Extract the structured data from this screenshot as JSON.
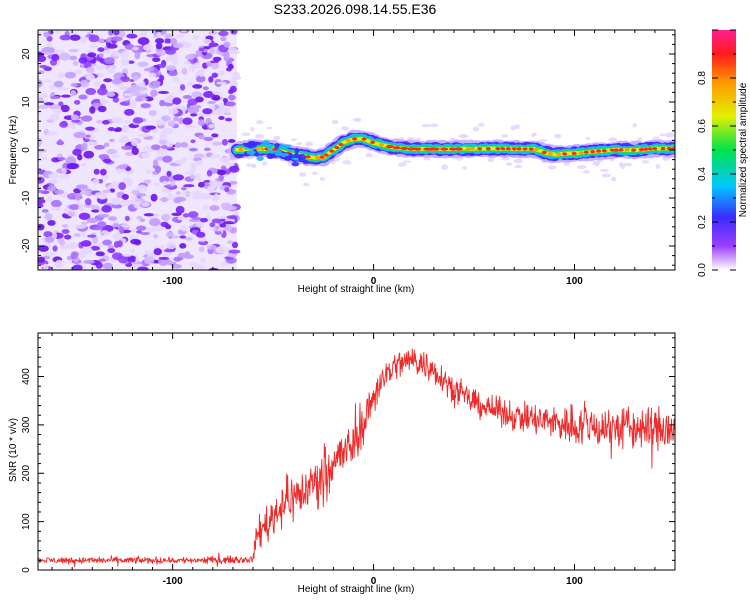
{
  "title": "S233.2026.098.14.55.E36",
  "colors": {
    "series": "#ee2a2a",
    "frame": "#000000",
    "background": "#ffffff"
  },
  "chart_data": [
    {
      "type": "heatmap",
      "xlabel": "Height of straight line (km)",
      "ylabel": "Frequency (Hz)",
      "xlim": [
        -167,
        150
      ],
      "ylim": [
        -25,
        25
      ],
      "xticks": [
        -100,
        0,
        100
      ],
      "xtick_labels": [
        "-100",
        "0",
        "100"
      ],
      "yticks": [
        -20,
        -10,
        0,
        10,
        20
      ],
      "ytick_labels": [
        "-20",
        "-10",
        "0",
        "10",
        "20"
      ],
      "noise_region_x": [
        -167,
        -68
      ],
      "ridge": {
        "x": [
          -68,
          -60,
          -50,
          -40,
          -30,
          -25,
          -20,
          -15,
          -10,
          -5,
          0,
          10,
          20,
          40,
          60,
          80,
          85,
          90,
          100,
          110,
          120,
          130,
          140,
          150
        ],
        "y": [
          0,
          0.3,
          0.2,
          -1.0,
          -1.6,
          -1.5,
          0,
          1.5,
          2.3,
          2.3,
          1.5,
          0.5,
          0.2,
          0.2,
          0.3,
          0.2,
          -0.5,
          -0.9,
          -0.7,
          -0.3,
          0,
          0,
          0.3,
          0.3
        ]
      },
      "colorbar": {
        "label": "Normalized spectral amplitude",
        "range": [
          0,
          1
        ],
        "ticks": [
          0.0,
          0.2,
          0.4,
          0.6,
          0.8
        ],
        "tick_labels": [
          "0.0",
          "0.2",
          "0.4",
          "0.6",
          "0.8"
        ]
      }
    },
    {
      "type": "line",
      "xlabel": "Height of straight line (km)",
      "ylabel": "SNR (10 * v/v)",
      "xlim": [
        -167,
        150
      ],
      "ylim": [
        0,
        490
      ],
      "xticks": [
        -100,
        0,
        100
      ],
      "xtick_labels": [
        "-100",
        "0",
        "100"
      ],
      "yticks": [
        0,
        100,
        200,
        300,
        400
      ],
      "ytick_labels": [
        "0",
        "100",
        "200",
        "300",
        "400"
      ],
      "series": [
        {
          "name": "SNR",
          "x": [
            -167,
            -100,
            -70,
            -60,
            -58,
            -50,
            -45,
            -40,
            -35,
            -30,
            -25,
            -20,
            -15,
            -10,
            -5,
            0,
            5,
            10,
            15,
            20,
            25,
            30,
            40,
            50,
            60,
            70,
            80,
            90,
            100,
            110,
            120,
            130,
            140,
            150
          ],
          "mean": [
            20,
            20,
            21,
            22,
            75,
            110,
            140,
            150,
            160,
            180,
            200,
            225,
            240,
            260,
            300,
            360,
            400,
            420,
            430,
            435,
            425,
            415,
            375,
            345,
            330,
            320,
            310,
            305,
            300,
            297,
            295,
            293,
            292,
            290
          ],
          "spread": [
            8,
            8,
            8,
            8,
            40,
            50,
            55,
            55,
            55,
            60,
            60,
            60,
            55,
            55,
            45,
            45,
            40,
            35,
            35,
            35,
            35,
            35,
            30,
            30,
            30,
            35,
            40,
            45,
            50,
            50,
            55,
            55,
            55,
            55
          ]
        }
      ]
    }
  ]
}
